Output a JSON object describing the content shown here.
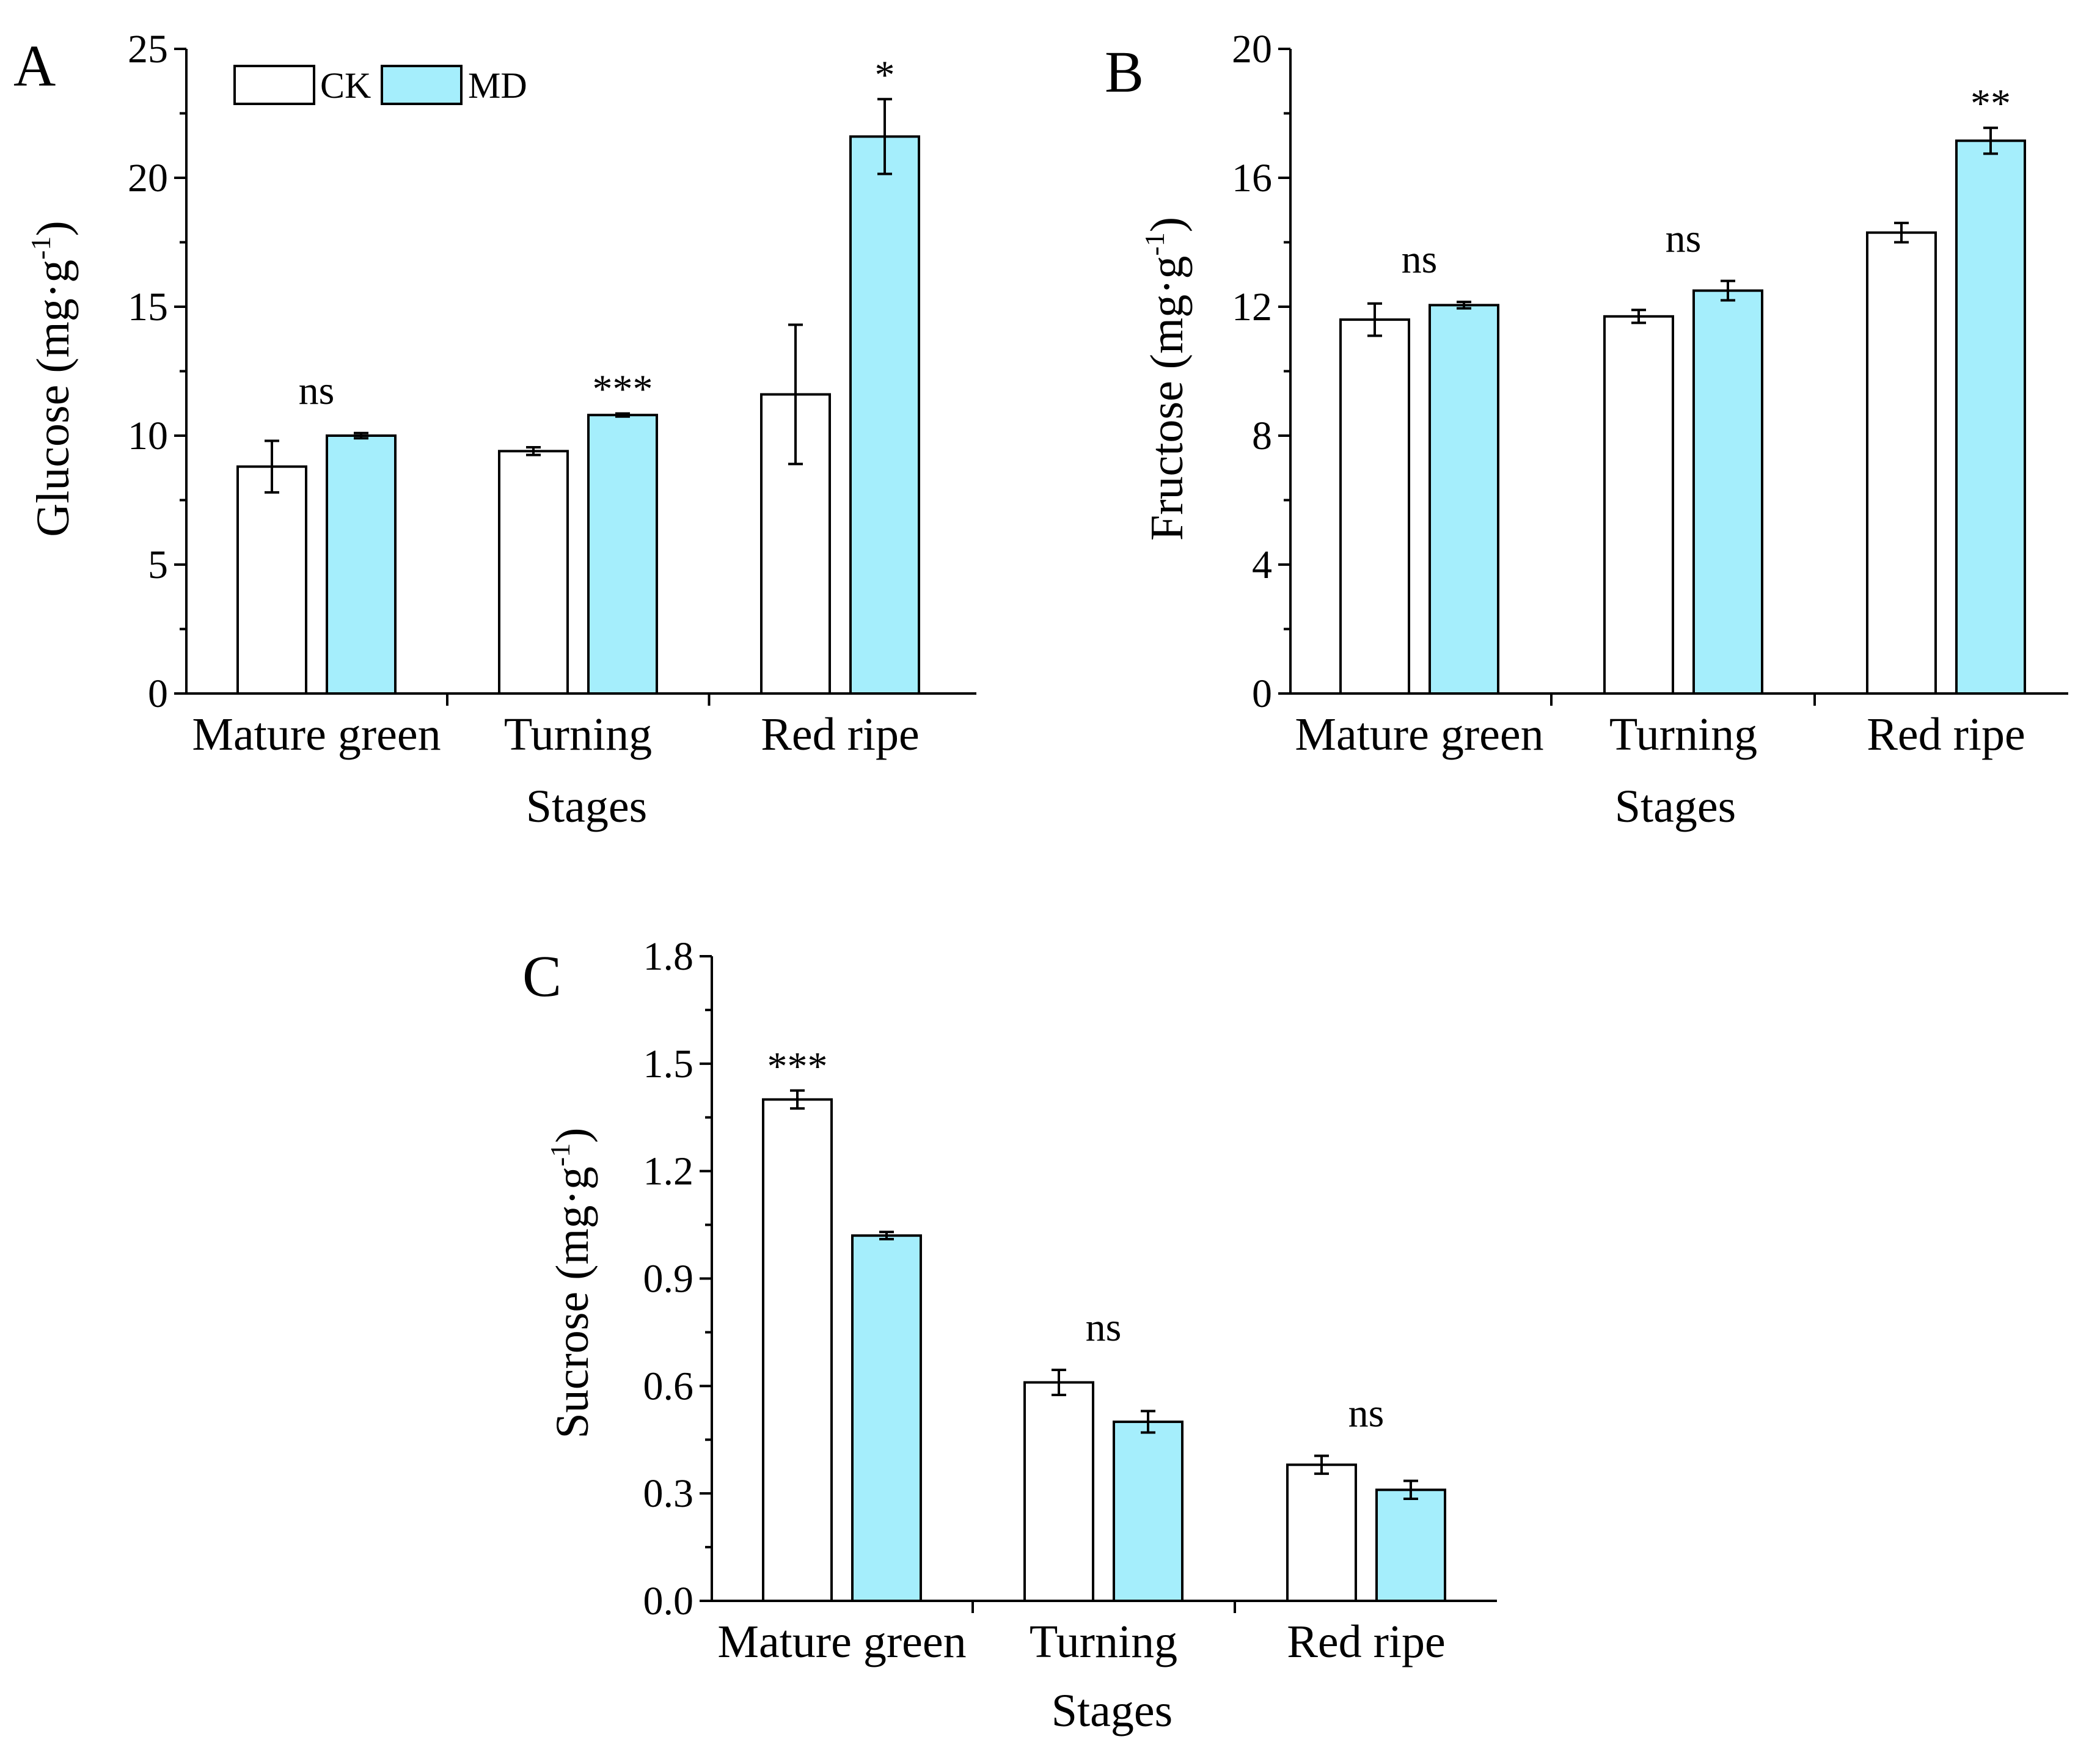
{
  "legend": [
    {
      "label": "CK",
      "color": "#ffffff"
    },
    {
      "label": "MD",
      "color": "#a5eefc"
    }
  ],
  "chart_data": [
    {
      "type": "bar",
      "panel": "A",
      "categories": [
        "Mature green",
        "Turning",
        "Red ripe"
      ],
      "xlabel": "Stages",
      "ylabel": "Glucose (mg·g-1)",
      "ylabel_main": "Glucose (mg·g",
      "ylabel_sup": "-1",
      "ylabel_end": ")",
      "ylim": [
        0,
        25
      ],
      "yticks": [
        0,
        5,
        10,
        15,
        20,
        25
      ],
      "ytick_labels": [
        "0",
        "5",
        "10",
        "15",
        "20",
        "25"
      ],
      "series": [
        {
          "name": "CK",
          "values": [
            8.8,
            9.4,
            11.6
          ],
          "errors": [
            1.0,
            0.15,
            2.7
          ]
        },
        {
          "name": "MD",
          "values": [
            10.0,
            10.8,
            21.6
          ],
          "errors": [
            0.1,
            0.06,
            1.45
          ]
        }
      ],
      "significance": [
        "ns",
        "***",
        "*"
      ]
    },
    {
      "type": "bar",
      "panel": "B",
      "categories": [
        "Mature green",
        "Turning",
        "Red ripe"
      ],
      "xlabel": "Stages",
      "ylabel": "Fructose (mg·g-1)",
      "ylabel_main": "Fructose (mg·g",
      "ylabel_sup": "-1",
      "ylabel_end": ")",
      "ylim": [
        0,
        20
      ],
      "yticks": [
        0,
        4,
        8,
        12,
        16,
        20
      ],
      "ytick_labels": [
        "0",
        "4",
        "8",
        "12",
        "16",
        "20"
      ],
      "series": [
        {
          "name": "CK",
          "values": [
            11.6,
            11.7,
            14.3
          ],
          "errors": [
            0.5,
            0.2,
            0.3
          ]
        },
        {
          "name": "MD",
          "values": [
            12.05,
            12.5,
            17.15
          ],
          "errors": [
            0.1,
            0.3,
            0.4
          ]
        }
      ],
      "significance": [
        "ns",
        "ns",
        "**"
      ]
    },
    {
      "type": "bar",
      "panel": "C",
      "categories": [
        "Mature green",
        "Turning",
        "Red ripe"
      ],
      "xlabel": "Stages",
      "ylabel": "Sucrose (mg·g-1)",
      "ylabel_main": "Sucrose (mg·g",
      "ylabel_sup": "-1",
      "ylabel_end": ")",
      "ylim": [
        0,
        1.8
      ],
      "yticks": [
        0,
        0.3,
        0.6,
        0.9,
        1.2,
        1.5,
        1.8
      ],
      "ytick_labels": [
        "0.0",
        "0.3",
        "0.6",
        "0.9",
        "1.2",
        "1.5",
        "1.8"
      ],
      "series": [
        {
          "name": "CK",
          "values": [
            1.4,
            0.61,
            0.38
          ],
          "errors": [
            0.025,
            0.035,
            0.025
          ]
        },
        {
          "name": "MD",
          "values": [
            1.02,
            0.5,
            0.31
          ],
          "errors": [
            0.01,
            0.03,
            0.025
          ]
        }
      ],
      "significance": [
        "***",
        "ns",
        "ns"
      ]
    }
  ]
}
